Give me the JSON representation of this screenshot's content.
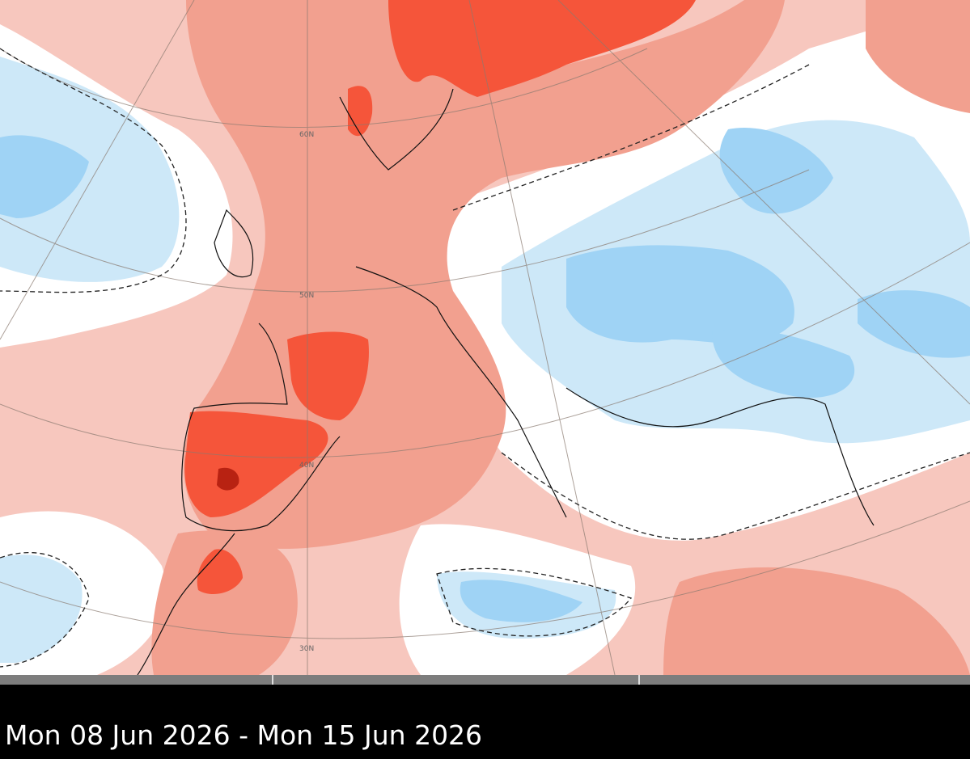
{
  "map": {
    "latitude_labels": [
      "60N",
      "50N",
      "40N",
      "30N"
    ]
  },
  "caption": "Mon 08 Jun 2026 - Mon 15 Jun 2026"
}
